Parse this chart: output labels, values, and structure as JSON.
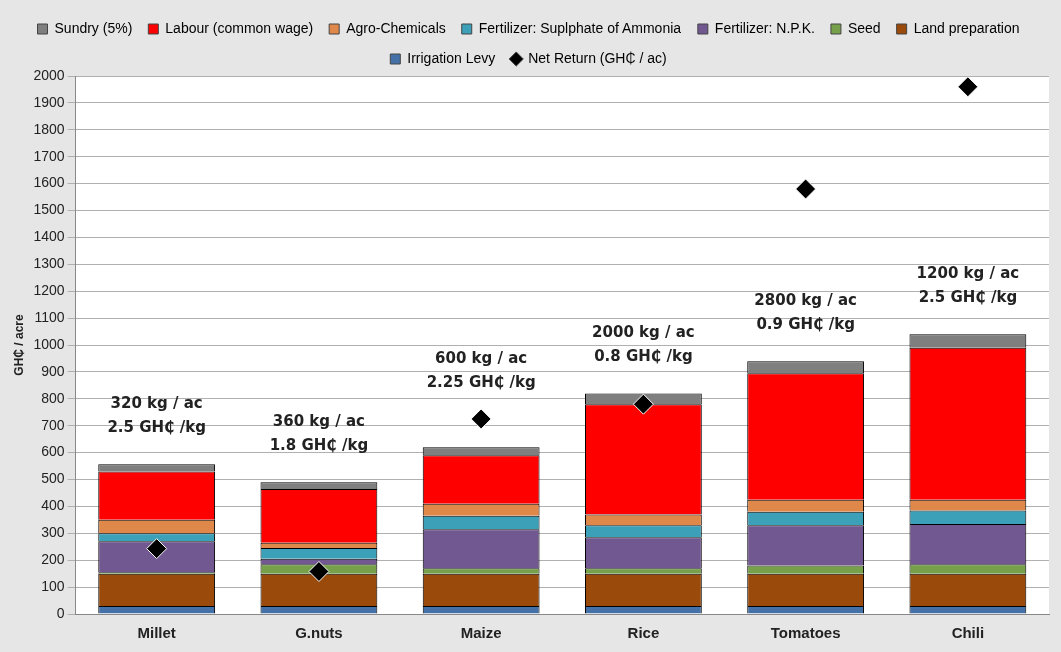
{
  "chart_data": {
    "type": "bar",
    "stacked": true,
    "ylabel": "GH₵ / acre",
    "categories": [
      "Millet",
      "G.nuts",
      "Maize",
      "Rice",
      "Tomatoes",
      "Chili"
    ],
    "ylim": [
      0,
      2000
    ],
    "yticks": [
      0,
      100,
      200,
      300,
      400,
      500,
      600,
      700,
      800,
      900,
      1000,
      1100,
      1200,
      1300,
      1400,
      1500,
      1600,
      1700,
      1800,
      1900,
      2000
    ],
    "grid": "y",
    "legend": "top",
    "series": [
      {
        "name": "Irrigation Levy",
        "color": "#4472a8",
        "values": [
          30,
          30,
          30,
          30,
          30,
          30
        ]
      },
      {
        "name": "Land preparation",
        "color": "#9a4a0a",
        "values": [
          120,
          120,
          120,
          120,
          120,
          120
        ]
      },
      {
        "name": "Seed",
        "color": "#77a04a",
        "values": [
          5,
          35,
          20,
          20,
          30,
          35
        ]
      },
      {
        "name": "Fertilizer: N.P.K.",
        "color": "#715890",
        "values": [
          115,
          20,
          145,
          115,
          150,
          150
        ]
      },
      {
        "name": "Fertilizer: Suplphate of Ammonia",
        "color": "#3ca0b8",
        "values": [
          30,
          40,
          50,
          45,
          50,
          50
        ]
      },
      {
        "name": "Agro-Chemicals",
        "color": "#e0884a",
        "values": [
          50,
          20,
          45,
          40,
          45,
          40
        ]
      },
      {
        "name": "Labour (common wage)",
        "color": "#ff0000",
        "values": [
          180,
          200,
          180,
          410,
          470,
          565
        ]
      },
      {
        "name": "Sundry (5%)",
        "color": "#7f7f7f",
        "values": [
          27,
          25,
          30,
          40,
          45,
          50
        ]
      },
      {
        "name": "Net Return (GH₵ / ac)",
        "type": "scatter",
        "marker": "diamond",
        "color": "#000000",
        "x": [
          "Millet",
          "G.nuts",
          "Maize",
          "Rice",
          "Tomatoes",
          "Chili"
        ],
        "values": [
          243,
          158,
          725,
          780,
          1580,
          1960
        ]
      }
    ],
    "annotations": [
      "320 kg / ac\n2.5 GH₵ /kg",
      "360 kg / ac\n1.8 GH₵ /kg",
      "600 kg / ac\n2.25 GH₵ /kg",
      "2000 kg / ac\n0.8 GH₵ /kg",
      "2800 kg / ac\n0.9 GH₵ /kg",
      "1200 kg / ac\n2.5 GH₵ /kg"
    ]
  }
}
